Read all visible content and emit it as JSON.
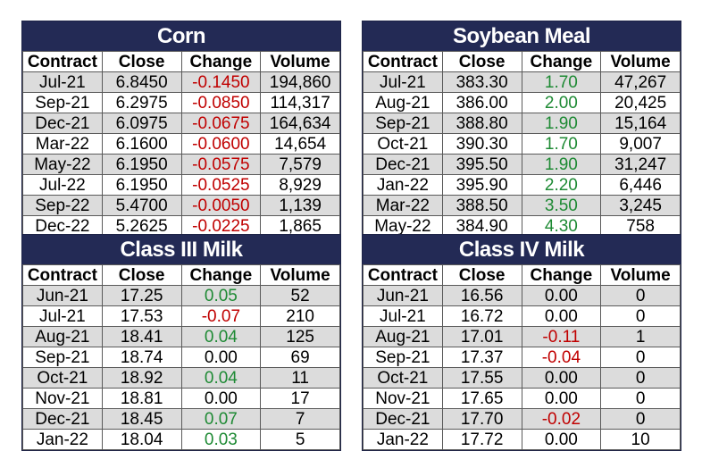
{
  "tables": [
    {
      "id": "corn",
      "title": "Corn",
      "headers": [
        "Contract",
        "Close",
        "Change",
        "Volume"
      ],
      "rows": [
        {
          "contract": "Jul-21",
          "close": "6.8450",
          "change": "-0.1450",
          "volume": "194,860",
          "dir": "neg"
        },
        {
          "contract": "Sep-21",
          "close": "6.2975",
          "change": "-0.0850",
          "volume": "114,317",
          "dir": "neg"
        },
        {
          "contract": "Dec-21",
          "close": "6.0975",
          "change": "-0.0675",
          "volume": "164,634",
          "dir": "neg"
        },
        {
          "contract": "Mar-22",
          "close": "6.1600",
          "change": "-0.0600",
          "volume": "14,654",
          "dir": "neg"
        },
        {
          "contract": "May-22",
          "close": "6.1950",
          "change": "-0.0575",
          "volume": "7,579",
          "dir": "neg"
        },
        {
          "contract": "Jul-22",
          "close": "6.1950",
          "change": "-0.0525",
          "volume": "8,929",
          "dir": "neg"
        },
        {
          "contract": "Sep-22",
          "close": "5.4700",
          "change": "-0.0050",
          "volume": "1,139",
          "dir": "neg"
        },
        {
          "contract": "Dec-22",
          "close": "5.2625",
          "change": "-0.0225",
          "volume": "1,865",
          "dir": "neg"
        }
      ]
    },
    {
      "id": "soybean-meal",
      "title": "Soybean Meal",
      "headers": [
        "Contract",
        "Close",
        "Change",
        "Volume"
      ],
      "rows": [
        {
          "contract": "Jul-21",
          "close": "383.30",
          "change": "1.70",
          "volume": "47,267",
          "dir": "pos"
        },
        {
          "contract": "Aug-21",
          "close": "386.00",
          "change": "2.00",
          "volume": "20,425",
          "dir": "pos"
        },
        {
          "contract": "Sep-21",
          "close": "388.80",
          "change": "1.90",
          "volume": "15,164",
          "dir": "pos"
        },
        {
          "contract": "Oct-21",
          "close": "390.30",
          "change": "1.70",
          "volume": "9,007",
          "dir": "pos"
        },
        {
          "contract": "Dec-21",
          "close": "395.50",
          "change": "1.90",
          "volume": "31,247",
          "dir": "pos"
        },
        {
          "contract": "Jan-22",
          "close": "395.90",
          "change": "2.20",
          "volume": "6,446",
          "dir": "pos"
        },
        {
          "contract": "Mar-22",
          "close": "388.50",
          "change": "3.50",
          "volume": "3,245",
          "dir": "pos"
        },
        {
          "contract": "May-22",
          "close": "384.90",
          "change": "4.30",
          "volume": "758",
          "dir": "pos"
        }
      ]
    },
    {
      "id": "class-iii-milk",
      "title": "Class III Milk",
      "headers": [
        "Contract",
        "Close",
        "Change",
        "Volume"
      ],
      "rows": [
        {
          "contract": "Jun-21",
          "close": "17.25",
          "change": "0.05",
          "volume": "52",
          "dir": "pos"
        },
        {
          "contract": "Jul-21",
          "close": "17.53",
          "change": "-0.07",
          "volume": "210",
          "dir": "neg"
        },
        {
          "contract": "Aug-21",
          "close": "18.41",
          "change": "0.04",
          "volume": "125",
          "dir": "pos"
        },
        {
          "contract": "Sep-21",
          "close": "18.74",
          "change": "0.00",
          "volume": "69",
          "dir": "flat"
        },
        {
          "contract": "Oct-21",
          "close": "18.92",
          "change": "0.04",
          "volume": "11",
          "dir": "pos"
        },
        {
          "contract": "Nov-21",
          "close": "18.81",
          "change": "0.00",
          "volume": "17",
          "dir": "flat"
        },
        {
          "contract": "Dec-21",
          "close": "18.45",
          "change": "0.07",
          "volume": "7",
          "dir": "pos"
        },
        {
          "contract": "Jan-22",
          "close": "18.04",
          "change": "0.03",
          "volume": "5",
          "dir": "pos"
        }
      ]
    },
    {
      "id": "class-iv-milk",
      "title": "Class IV Milk",
      "headers": [
        "Contract",
        "Close",
        "Change",
        "Volume"
      ],
      "rows": [
        {
          "contract": "Jun-21",
          "close": "16.56",
          "change": "0.00",
          "volume": "0",
          "dir": "flat"
        },
        {
          "contract": "Jul-21",
          "close": "16.72",
          "change": "0.00",
          "volume": "0",
          "dir": "flat"
        },
        {
          "contract": "Aug-21",
          "close": "17.01",
          "change": "-0.11",
          "volume": "1",
          "dir": "neg"
        },
        {
          "contract": "Sep-21",
          "close": "17.37",
          "change": "-0.04",
          "volume": "0",
          "dir": "neg"
        },
        {
          "contract": "Oct-21",
          "close": "17.55",
          "change": "0.00",
          "volume": "0",
          "dir": "flat"
        },
        {
          "contract": "Nov-21",
          "close": "17.65",
          "change": "0.00",
          "volume": "0",
          "dir": "flat"
        },
        {
          "contract": "Dec-21",
          "close": "17.70",
          "change": "-0.02",
          "volume": "0",
          "dir": "neg"
        },
        {
          "contract": "Jan-22",
          "close": "17.72",
          "change": "0.00",
          "volume": "10",
          "dir": "flat"
        }
      ]
    }
  ],
  "colors": {
    "header_bg": "#232a55",
    "negative": "#c00000",
    "positive": "#1e8a34",
    "stripe": "#dcdcdc"
  }
}
